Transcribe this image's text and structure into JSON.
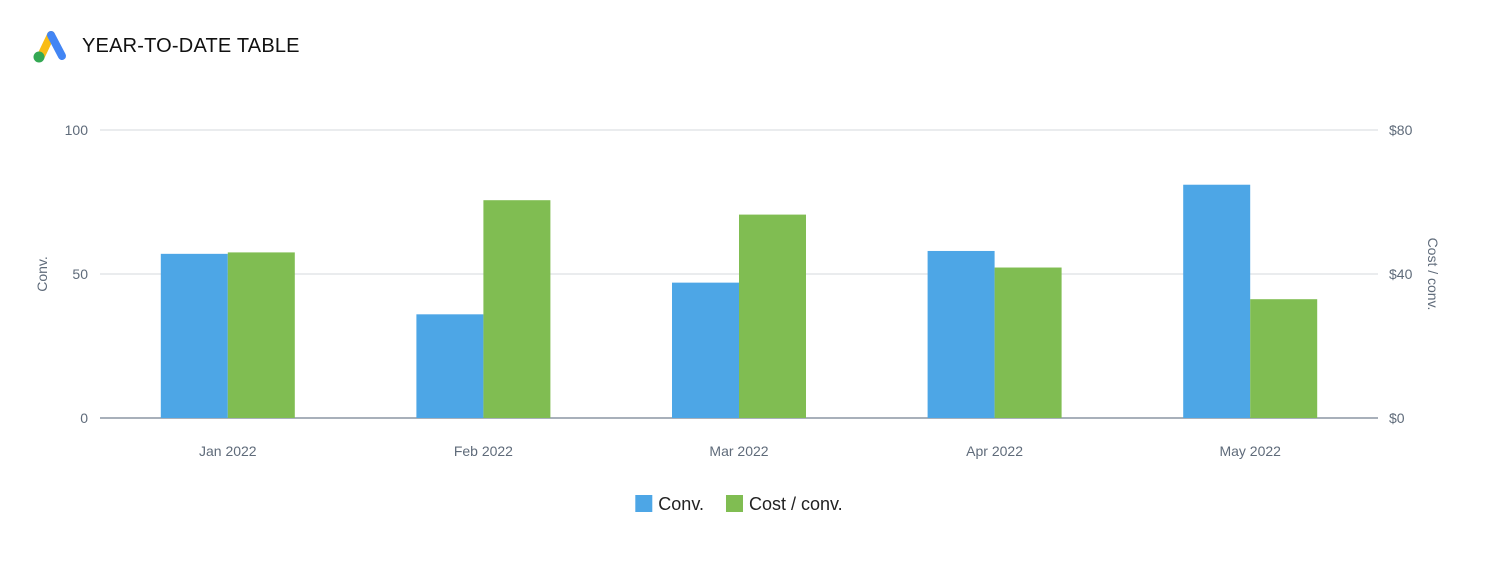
{
  "header": {
    "title": "YEAR-TO-DATE TABLE",
    "logo_icon": "google-ads-logo-icon"
  },
  "chart_data": {
    "type": "bar",
    "categories": [
      "Jan 2022",
      "Feb 2022",
      "Mar 2022",
      "Apr 2022",
      "May 2022"
    ],
    "series": [
      {
        "name": "Conv.",
        "axis": "left",
        "color": "#4da6e6",
        "values": [
          57,
          36,
          47,
          58,
          81
        ]
      },
      {
        "name": "Cost / conv.",
        "axis": "right",
        "color": "#80bd52",
        "values": [
          46,
          60.5,
          56.5,
          41.8,
          33
        ]
      }
    ],
    "y_left": {
      "label": "Conv.",
      "ticks": [
        0,
        50,
        100
      ],
      "tick_labels": [
        "0",
        "50",
        "100"
      ],
      "range": [
        0,
        100
      ]
    },
    "y_right": {
      "label": "Cost / conv.",
      "ticks": [
        0,
        40,
        80
      ],
      "tick_labels": [
        "$0",
        "$40",
        "$80"
      ],
      "range": [
        0,
        80
      ]
    },
    "grid": true,
    "legend": "bottom-center"
  }
}
